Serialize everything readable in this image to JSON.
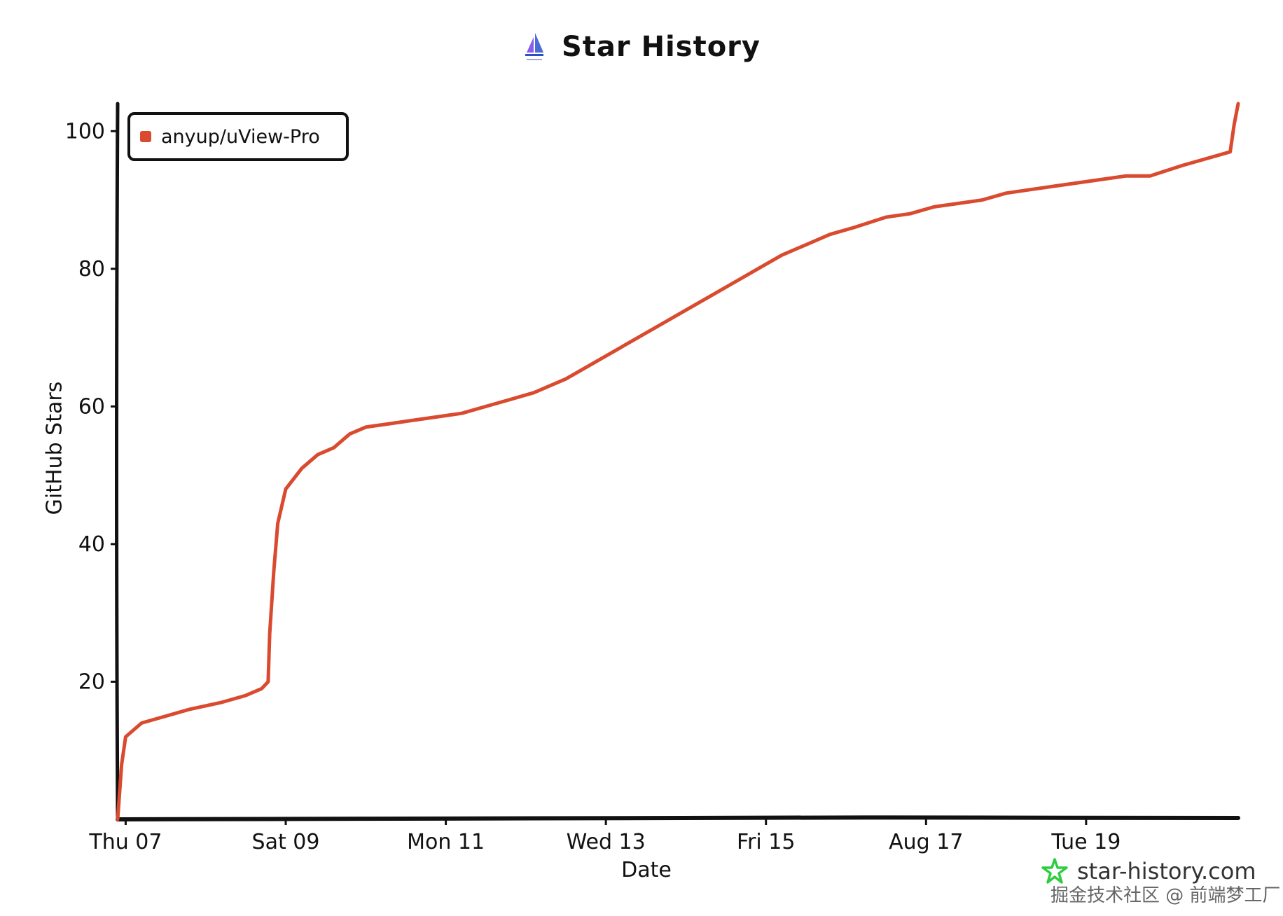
{
  "title": "Star History",
  "brand": {
    "site": "star-history.com",
    "watermark": "掘金技术社区 @ 前端梦工厂"
  },
  "colors": {
    "series": "#d94a2f",
    "axis": "#111111",
    "brand": "#2ecc40"
  },
  "icons": {
    "logo": "sailboat-logo-icon",
    "brand": "star-outline-icon"
  },
  "chart_data": {
    "type": "line",
    "title": "Star History",
    "xlabel": "Date",
    "ylabel": "GitHub Stars",
    "ylim": [
      0,
      104
    ],
    "yticks": [
      20,
      40,
      60,
      80,
      100
    ],
    "xticks": [
      "Thu 07",
      "Sat 09",
      "Mon 11",
      "Wed 13",
      "Fri 15",
      "Aug 17",
      "Tue 19"
    ],
    "xtick_days": [
      7,
      9,
      11,
      13,
      15,
      17,
      19
    ],
    "xlim_days": [
      6.9,
      20.9
    ],
    "grid": false,
    "legend_position": "top-left",
    "x_unit": "day of month",
    "series": [
      {
        "name": "anyup/uView-Pro",
        "x": [
          6.9,
          6.95,
          7.0,
          7.2,
          7.5,
          7.8,
          8.2,
          8.5,
          8.7,
          8.78,
          8.8,
          8.85,
          8.9,
          9.0,
          9.2,
          9.4,
          9.6,
          9.8,
          10.0,
          10.3,
          10.6,
          10.9,
          11.2,
          11.5,
          11.8,
          12.1,
          12.5,
          12.8,
          13.1,
          13.4,
          13.7,
          14.0,
          14.3,
          14.6,
          14.9,
          15.2,
          15.5,
          15.8,
          16.1,
          16.5,
          16.8,
          17.1,
          17.4,
          17.7,
          18.0,
          18.3,
          18.6,
          18.9,
          19.2,
          19.5,
          19.8,
          20.2,
          20.5,
          20.8,
          20.85,
          20.9
        ],
        "y": [
          0,
          8,
          12,
          14,
          15,
          16,
          17,
          18,
          19,
          20,
          27,
          36,
          43,
          48,
          51,
          53,
          54,
          56,
          57,
          57.5,
          58,
          58.5,
          59,
          60,
          61,
          62,
          64,
          66,
          68,
          70,
          72,
          74,
          76,
          78,
          80,
          82,
          83.5,
          85,
          86,
          87.5,
          88,
          89,
          89.5,
          90,
          91,
          91.5,
          92,
          92.5,
          93,
          93.5,
          93.5,
          95,
          96,
          97,
          101,
          104
        ]
      }
    ]
  }
}
